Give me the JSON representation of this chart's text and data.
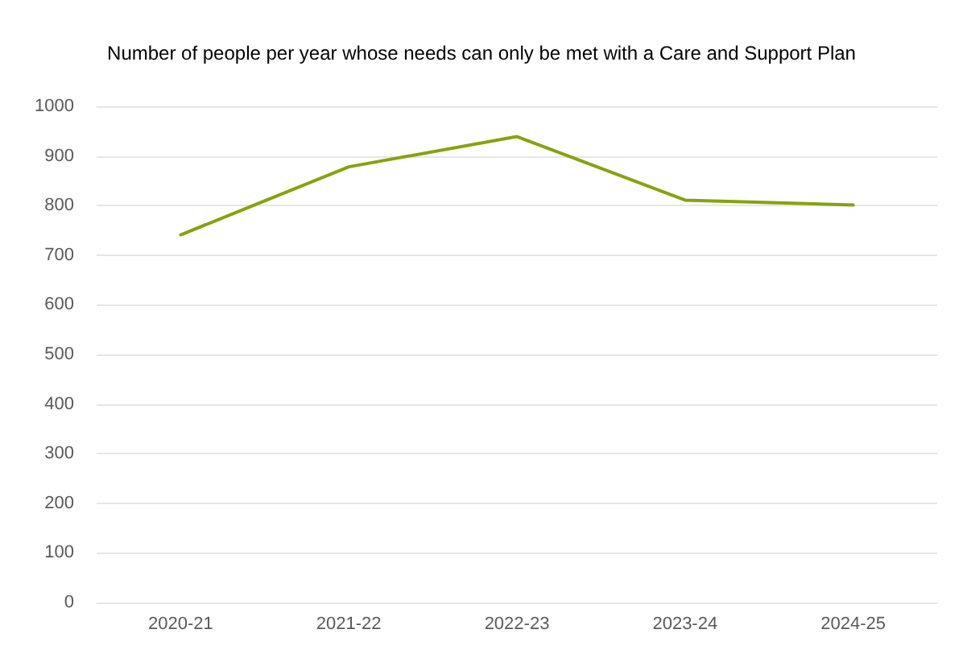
{
  "chart_data": {
    "type": "line",
    "title": "Number of people per year whose needs can only be met with a Care and Support Plan",
    "categories": [
      "2020-21",
      "2021-22",
      "2022-23",
      "2023-24",
      "2024-25"
    ],
    "series": [
      {
        "color": "#86a20e",
        "values": [
          741,
          878,
          939,
          811,
          801
        ]
      }
    ],
    "ylim": [
      0,
      1000
    ],
    "yticks": [
      0,
      100,
      200,
      300,
      400,
      500,
      600,
      700,
      800,
      900,
      1000
    ],
    "grid": "y",
    "marker": "none"
  }
}
